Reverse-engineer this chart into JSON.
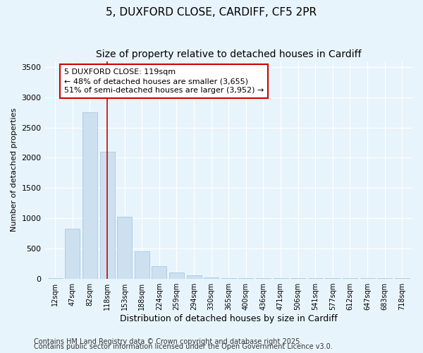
{
  "title1": "5, DUXFORD CLOSE, CARDIFF, CF5 2PR",
  "title2": "Size of property relative to detached houses in Cardiff",
  "xlabel": "Distribution of detached houses by size in Cardiff",
  "ylabel": "Number of detached properties",
  "categories": [
    "12sqm",
    "47sqm",
    "82sqm",
    "118sqm",
    "153sqm",
    "188sqm",
    "224sqm",
    "259sqm",
    "294sqm",
    "330sqm",
    "365sqm",
    "400sqm",
    "436sqm",
    "471sqm",
    "506sqm",
    "541sqm",
    "577sqm",
    "612sqm",
    "647sqm",
    "683sqm",
    "718sqm"
  ],
  "values": [
    10,
    830,
    2750,
    2100,
    1020,
    450,
    200,
    100,
    50,
    20,
    10,
    5,
    3,
    2,
    2,
    1,
    1,
    1,
    1,
    1,
    1
  ],
  "bar_color": "#cce0f0",
  "bar_edge_color": "#a8c8e0",
  "vline_x": 3,
  "vline_color": "#cc0000",
  "annotation_text": "5 DUXFORD CLOSE: 119sqm\n← 48% of detached houses are smaller (3,655)\n51% of semi-detached houses are larger (3,952) →",
  "annotation_box_color": "#ffffff",
  "annotation_box_edge": "#cc0000",
  "ylim": [
    0,
    3600
  ],
  "yticks": [
    0,
    500,
    1000,
    1500,
    2000,
    2500,
    3000,
    3500
  ],
  "footnote1": "Contains HM Land Registry data © Crown copyright and database right 2025.",
  "footnote2": "Contains public sector information licensed under the Open Government Licence v3.0.",
  "bg_color": "#e8f4fc",
  "plot_bg_color": "#e8f4fc",
  "title_fontsize": 11,
  "subtitle_fontsize": 10,
  "footnote_fontsize": 7,
  "annotation_fontsize": 8
}
